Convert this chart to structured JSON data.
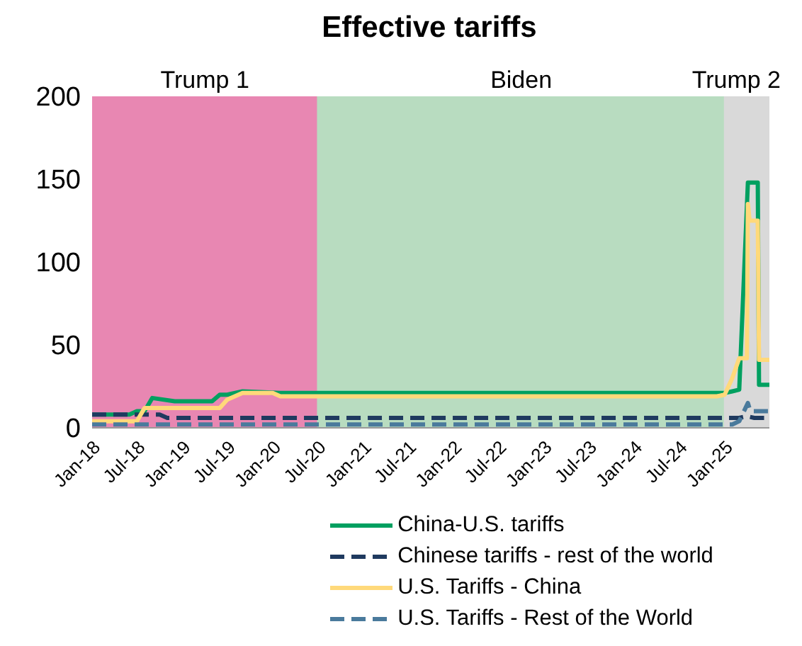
{
  "chart_data": {
    "type": "line",
    "title": "Effective tariffs",
    "xlim": [
      "2018-01",
      "2025-07"
    ],
    "xticks": [
      {
        "value": "2018-01",
        "label": "Jan-18"
      },
      {
        "value": "2018-07",
        "label": "Jul-18"
      },
      {
        "value": "2019-01",
        "label": "Jan-19"
      },
      {
        "value": "2019-07",
        "label": "Jul-19"
      },
      {
        "value": "2020-01",
        "label": "Jan-20"
      },
      {
        "value": "2020-07",
        "label": "Jul-20"
      },
      {
        "value": "2021-01",
        "label": "Jan-21"
      },
      {
        "value": "2021-07",
        "label": "Jul-21"
      },
      {
        "value": "2022-01",
        "label": "Jan-22"
      },
      {
        "value": "2022-07",
        "label": "Jul-22"
      },
      {
        "value": "2023-01",
        "label": "Jan-23"
      },
      {
        "value": "2023-07",
        "label": "Jul-23"
      },
      {
        "value": "2024-01",
        "label": "Jan-24"
      },
      {
        "value": "2024-07",
        "label": "Jul-24"
      },
      {
        "value": "2025-01",
        "label": "Jan-25"
      }
    ],
    "ylim": [
      0,
      200
    ],
    "yticks": [
      0,
      50,
      100,
      150,
      200
    ],
    "grid": false,
    "legend": "bottom",
    "bands": [
      {
        "axis": "x",
        "from": "2018-01",
        "to": "2020-07",
        "label": "Trump 1",
        "color": "#e887b2"
      },
      {
        "axis": "x",
        "from": "2020-07",
        "to": "2025-01",
        "label": "Biden",
        "color": "#b8dcc0"
      },
      {
        "axis": "x",
        "from": "2025-01",
        "to": "2025-07",
        "label": "Trump 2",
        "color": "#d9d9d9"
      }
    ],
    "series": [
      {
        "name": "China-U.S. tariffs",
        "color": "#00a060",
        "line_style": "solid",
        "x": [
          "2018-01",
          "2018-06",
          "2018-07",
          "2018-08",
          "2018-09",
          "2018-12",
          "2019-05",
          "2019-06",
          "2019-07",
          "2019-09",
          "2020-02",
          "2024-12",
          "2025-01",
          "2025-02",
          "2025-03",
          "2025-04-05",
          "2025-05-15",
          "2025-05-20",
          "2025-07"
        ],
        "values": [
          8,
          8,
          10,
          10,
          18,
          16,
          16,
          20,
          20,
          22,
          21,
          21,
          21,
          22,
          23,
          148,
          148,
          26,
          26
        ]
      },
      {
        "name": "Chinese tariffs - rest of the world",
        "color": "#1f3a5f",
        "line_style": "dashed",
        "x": [
          "2018-01",
          "2018-10",
          "2018-11",
          "2025-03",
          "2025-04",
          "2025-05",
          "2025-07"
        ],
        "values": [
          8,
          8,
          6,
          6,
          7,
          6,
          6
        ]
      },
      {
        "name": "U.S. Tariffs - China",
        "color": "#ffd97a",
        "line_style": "solid",
        "x": [
          "2018-01",
          "2018-07",
          "2018-08",
          "2019-06",
          "2019-07",
          "2019-09",
          "2020-01",
          "2020-02",
          "2024-12",
          "2025-01",
          "2025-02",
          "2025-03",
          "2025-04-01",
          "2025-04-05",
          "2025-04-12",
          "2025-05-15",
          "2025-05-20",
          "2025-07"
        ],
        "values": [
          4,
          4,
          12,
          12,
          17,
          21,
          21,
          19,
          19,
          20,
          30,
          42,
          42,
          135,
          125,
          125,
          41,
          41
        ]
      },
      {
        "name": "U.S. Tariffs - Rest of the World",
        "color": "#4a7a9c",
        "line_style": "dashed",
        "x": [
          "2018-01",
          "2025-02",
          "2025-03",
          "2025-04-05",
          "2025-04-15",
          "2025-07"
        ],
        "values": [
          2,
          2,
          4,
          15,
          10,
          10
        ]
      }
    ]
  }
}
